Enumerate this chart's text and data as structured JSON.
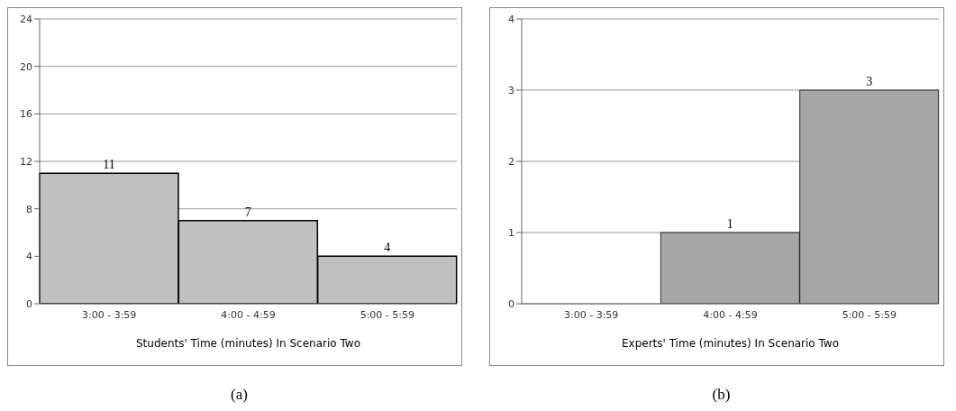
{
  "chart_data": [
    {
      "type": "bar",
      "categories": [
        "3:00 - 3:59",
        "4:00 - 4:59",
        "5:00 - 5:59"
      ],
      "values": [
        11,
        7,
        4
      ],
      "color": "#c0c0c0",
      "ylim": [
        0,
        24
      ],
      "yticks": [
        0,
        4,
        8,
        12,
        16,
        20,
        24
      ],
      "grid": "y",
      "xlabel": "Students' Time (minutes) In Scenario Two",
      "data_labels": true,
      "annotations": [
        "(a)"
      ]
    },
    {
      "type": "bar",
      "categories": [
        "3:00 - 3:59",
        "4:00 - 4:59",
        "5:00 - 5:59"
      ],
      "values": [
        0,
        1,
        3
      ],
      "value_labels": [
        null,
        "1",
        "3"
      ],
      "color": "#a6a6a6",
      "ylim": [
        0,
        4
      ],
      "yticks": [
        0,
        1,
        2,
        3,
        4
      ],
      "grid": "y",
      "xlabel": "Experts' Time (minutes) In Scenario Two",
      "annotations": [
        "(b)"
      ]
    }
  ]
}
